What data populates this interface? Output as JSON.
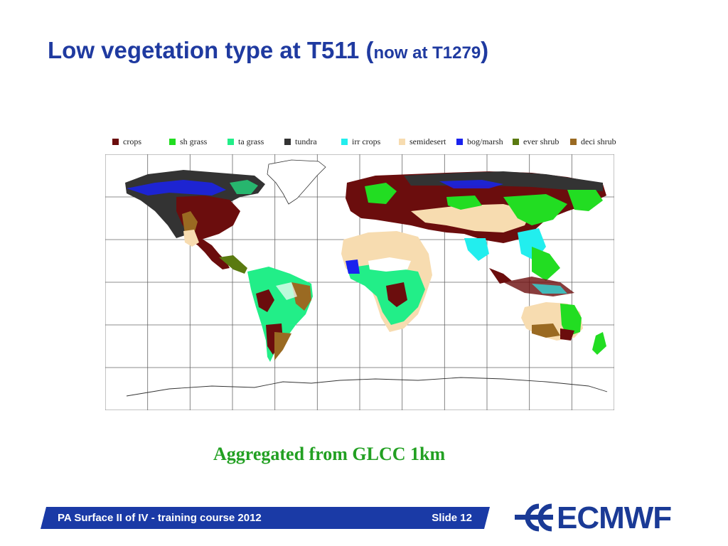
{
  "title": {
    "main": "Low vegetation type at T511 (",
    "small": "now at T1279",
    "close": ")"
  },
  "legend": [
    {
      "label": "crops",
      "color": "#6b0d0d"
    },
    {
      "label": "sh grass",
      "color": "#22dd22"
    },
    {
      "label": "ta grass",
      "color": "#22ee88"
    },
    {
      "label": "tundra",
      "color": "#333333"
    },
    {
      "label": "irr crops",
      "color": "#22eeee"
    },
    {
      "label": "semidesert",
      "color": "#f7dcb0"
    },
    {
      "label": "bog/marsh",
      "color": "#1a22ee"
    },
    {
      "label": "ever shrub",
      "color": "#5a7a10"
    },
    {
      "label": "deci shrub",
      "color": "#9a6a22"
    }
  ],
  "caption": "Aggregated from GLCC 1km",
  "footer": {
    "course": "PA Surface II of IV - training course 2012",
    "slide": "Slide 12"
  },
  "logo": {
    "text": "ECMWF",
    "color": "#1a3a96"
  },
  "colors": {
    "title": "#1f3aa0",
    "footer_bar": "#1a3aa6",
    "caption": "#22a022"
  }
}
